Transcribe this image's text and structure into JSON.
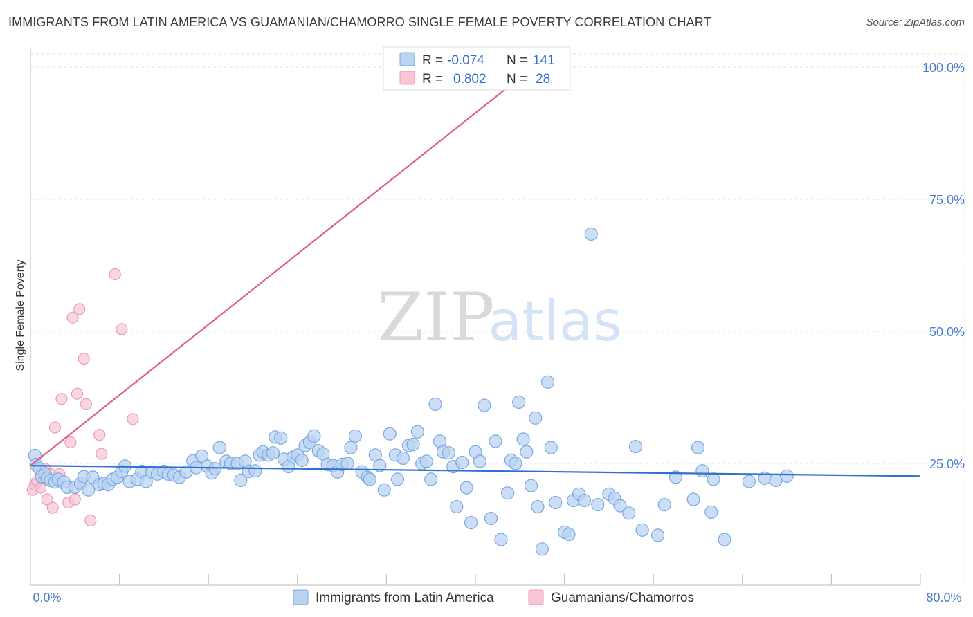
{
  "title": "IMMIGRANTS FROM LATIN AMERICA VS GUAMANIAN/CHAMORRO SINGLE FEMALE POVERTY CORRELATION CHART",
  "source": "Source: ZipAtlas.com",
  "watermark": {
    "zip": "ZIP",
    "atlas": "atlas"
  },
  "colors": {
    "blue_fill": "#b9d3f3",
    "blue_stroke": "#7aa8e0",
    "blue_line": "#2f6fd0",
    "pink_fill": "#f8c5d5",
    "pink_stroke": "#ee9ab5",
    "pink_line": "#e05a8a",
    "grid": "#e3e3e3",
    "tick_text": "#4a7ecf"
  },
  "legend": {
    "rows": [
      {
        "r_label": "R =",
        "r_value": "-0.074",
        "n_label": "N =",
        "n_value": "141"
      },
      {
        "r_label": "R =",
        "r_value": "0.802",
        "n_label": "N =",
        "n_value": "28"
      }
    ]
  },
  "chart_data": {
    "type": "scatter",
    "title": "IMMIGRANTS FROM LATIN AMERICA VS GUAMANIAN/CHAMORRO SINGLE FEMALE POVERTY CORRELATION CHART",
    "xlabel": "",
    "ylabel": "Single Female Poverty",
    "xlim": [
      0,
      80
    ],
    "ylim": [
      0,
      102
    ],
    "x_tick_labels": [
      "0.0%",
      "80.0%"
    ],
    "y_ticks": [
      25,
      50,
      75,
      100
    ],
    "y_tick_labels": [
      "25.0%",
      "50.0%",
      "75.0%",
      "100.0%"
    ],
    "grid": true,
    "legend_position": "top-center",
    "series": [
      {
        "name": "Immigrants from Latin America",
        "color": "#7aa8e0",
        "r": -0.074,
        "n": 141,
        "trend": {
          "x": [
            0,
            80
          ],
          "y": [
            24.6,
            22.6
          ]
        },
        "points": [
          [
            0.4,
            26.5
          ],
          [
            0.5,
            24.8
          ],
          [
            0.8,
            24.0
          ],
          [
            1.0,
            22.5
          ],
          [
            1.3,
            23.0
          ],
          [
            1.5,
            22.2
          ],
          [
            1.8,
            21.8
          ],
          [
            2.2,
            21.5
          ],
          [
            2.5,
            22.0
          ],
          [
            3.0,
            21.5
          ],
          [
            3.3,
            20.5
          ],
          [
            4.0,
            20.5
          ],
          [
            4.5,
            21.2
          ],
          [
            4.8,
            22.5
          ],
          [
            5.2,
            20.0
          ],
          [
            5.6,
            22.4
          ],
          [
            6.2,
            21.0
          ],
          [
            6.6,
            21.2
          ],
          [
            7.0,
            21.0
          ],
          [
            7.4,
            22.0
          ],
          [
            7.8,
            22.4
          ],
          [
            8.2,
            23.5
          ],
          [
            8.5,
            24.5
          ],
          [
            8.9,
            21.6
          ],
          [
            9.6,
            22.0
          ],
          [
            10.0,
            23.5
          ],
          [
            10.4,
            21.6
          ],
          [
            10.9,
            23.4
          ],
          [
            11.4,
            23.0
          ],
          [
            12.0,
            23.5
          ],
          [
            12.4,
            23.0
          ],
          [
            12.9,
            22.8
          ],
          [
            13.4,
            22.4
          ],
          [
            14.0,
            23.4
          ],
          [
            14.6,
            25.5
          ],
          [
            14.9,
            24.2
          ],
          [
            15.4,
            26.4
          ],
          [
            15.9,
            24.5
          ],
          [
            16.3,
            23.2
          ],
          [
            16.6,
            24.0
          ],
          [
            17.0,
            28.0
          ],
          [
            17.6,
            25.4
          ],
          [
            18.0,
            25.0
          ],
          [
            18.6,
            25.0
          ],
          [
            18.9,
            21.8
          ],
          [
            19.3,
            25.4
          ],
          [
            19.6,
            23.5
          ],
          [
            20.2,
            23.6
          ],
          [
            20.6,
            26.6
          ],
          [
            20.9,
            27.2
          ],
          [
            21.4,
            26.6
          ],
          [
            21.8,
            27.0
          ],
          [
            22.0,
            30.0
          ],
          [
            22.5,
            29.8
          ],
          [
            22.8,
            25.8
          ],
          [
            23.2,
            24.4
          ],
          [
            23.6,
            26.2
          ],
          [
            24.0,
            26.6
          ],
          [
            24.4,
            25.6
          ],
          [
            24.7,
            28.4
          ],
          [
            25.1,
            29.0
          ],
          [
            25.5,
            30.2
          ],
          [
            25.9,
            27.4
          ],
          [
            26.3,
            26.8
          ],
          [
            26.7,
            24.8
          ],
          [
            27.2,
            24.6
          ],
          [
            27.6,
            23.4
          ],
          [
            28.0,
            24.8
          ],
          [
            28.5,
            25.0
          ],
          [
            28.8,
            28.0
          ],
          [
            29.2,
            30.2
          ],
          [
            29.8,
            23.4
          ],
          [
            30.3,
            22.4
          ],
          [
            30.5,
            22.0
          ],
          [
            31.0,
            26.6
          ],
          [
            31.4,
            24.6
          ],
          [
            31.8,
            20.0
          ],
          [
            32.3,
            30.6
          ],
          [
            32.8,
            26.6
          ],
          [
            33.0,
            22.0
          ],
          [
            33.5,
            26.0
          ],
          [
            34.0,
            28.4
          ],
          [
            34.4,
            28.6
          ],
          [
            34.8,
            31.0
          ],
          [
            35.2,
            25.0
          ],
          [
            35.6,
            25.4
          ],
          [
            36.0,
            22.0
          ],
          [
            36.4,
            36.2
          ],
          [
            36.8,
            29.2
          ],
          [
            37.1,
            27.2
          ],
          [
            37.6,
            27.0
          ],
          [
            38.0,
            24.4
          ],
          [
            38.3,
            16.8
          ],
          [
            38.8,
            25.2
          ],
          [
            39.2,
            20.4
          ],
          [
            39.6,
            13.8
          ],
          [
            40.0,
            27.2
          ],
          [
            40.4,
            25.4
          ],
          [
            40.8,
            36.0
          ],
          [
            41.4,
            14.6
          ],
          [
            41.8,
            29.2
          ],
          [
            42.3,
            10.6
          ],
          [
            42.9,
            19.4
          ],
          [
            43.2,
            25.6
          ],
          [
            43.6,
            25.0
          ],
          [
            43.9,
            36.6
          ],
          [
            44.3,
            29.6
          ],
          [
            44.6,
            27.2
          ],
          [
            45.0,
            20.8
          ],
          [
            45.4,
            33.6
          ],
          [
            45.6,
            16.8
          ],
          [
            46.0,
            8.8
          ],
          [
            46.5,
            40.4
          ],
          [
            46.8,
            28.0
          ],
          [
            47.2,
            17.6
          ],
          [
            48.0,
            12.0
          ],
          [
            48.4,
            11.6
          ],
          [
            48.8,
            18.0
          ],
          [
            49.3,
            19.2
          ],
          [
            49.8,
            18.0
          ],
          [
            50.4,
            68.4
          ],
          [
            51.0,
            17.2
          ],
          [
            52.0,
            19.2
          ],
          [
            52.5,
            18.4
          ],
          [
            53.0,
            17.0
          ],
          [
            53.8,
            15.6
          ],
          [
            54.4,
            28.2
          ],
          [
            55.0,
            12.4
          ],
          [
            56.4,
            11.4
          ],
          [
            57.0,
            17.2
          ],
          [
            58.0,
            22.4
          ],
          [
            59.6,
            18.2
          ],
          [
            60.0,
            28.0
          ],
          [
            60.4,
            23.6
          ],
          [
            61.2,
            15.8
          ],
          [
            61.4,
            22.0
          ],
          [
            62.4,
            10.6
          ],
          [
            64.6,
            21.6
          ],
          [
            66.0,
            22.2
          ],
          [
            67.0,
            21.8
          ],
          [
            68.0,
            22.6
          ]
        ]
      },
      {
        "name": "Guamanians/Chamorros",
        "color": "#ee9ab5",
        "r": 0.802,
        "n": 28,
        "trend": {
          "x": [
            0,
            45.2
          ],
          "y": [
            24.6,
            100
          ]
        },
        "points": [
          [
            0.2,
            20.0
          ],
          [
            0.4,
            21.0
          ],
          [
            0.6,
            21.6
          ],
          [
            0.9,
            20.4
          ],
          [
            1.0,
            22.6
          ],
          [
            1.3,
            24.0
          ],
          [
            1.5,
            18.2
          ],
          [
            1.8,
            23.0
          ],
          [
            2.0,
            16.6
          ],
          [
            2.2,
            31.8
          ],
          [
            2.6,
            23.0
          ],
          [
            2.8,
            37.2
          ],
          [
            3.4,
            17.6
          ],
          [
            3.6,
            29.0
          ],
          [
            3.8,
            52.6
          ],
          [
            4.0,
            18.2
          ],
          [
            4.2,
            38.2
          ],
          [
            4.4,
            54.2
          ],
          [
            4.8,
            44.8
          ],
          [
            5.0,
            36.2
          ],
          [
            5.4,
            14.2
          ],
          [
            6.2,
            30.4
          ],
          [
            6.4,
            26.8
          ],
          [
            7.6,
            60.8
          ],
          [
            8.2,
            50.4
          ],
          [
            9.2,
            33.4
          ],
          [
            1.2,
            22.2
          ],
          [
            45.2,
            100.0
          ]
        ]
      }
    ]
  },
  "bottom_legend": [
    {
      "label": "Immigrants from Latin America"
    },
    {
      "label": "Guamanians/Chamorros"
    }
  ]
}
